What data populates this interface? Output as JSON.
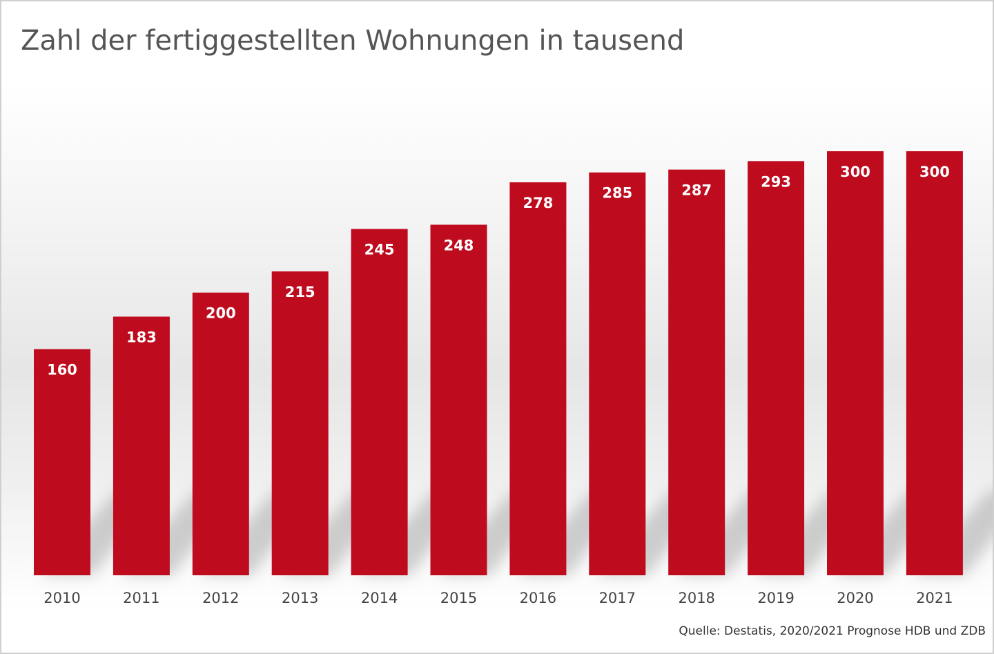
{
  "title": "Zahl der fertiggestellten Wohnungen in tausend",
  "source": "Quelle: Destatis, 2020/2021 Prognose HDB und ZDB",
  "colors": {
    "bar": "#BE0B1E",
    "bar_label": "#ffffff",
    "tick_label": "#444444",
    "title": "#555555"
  },
  "chart_data": {
    "type": "bar",
    "title": "Zahl der fertiggestellten Wohnungen in tausend",
    "categories": [
      "2010",
      "2011",
      "2012",
      "2013",
      "2014",
      "2015",
      "2016",
      "2017",
      "2018",
      "2019",
      "2020",
      "2021"
    ],
    "values": [
      160,
      183,
      200,
      215,
      245,
      248,
      278,
      285,
      287,
      293,
      300,
      300
    ],
    "data_labels": [
      "160",
      "183",
      "200",
      "215",
      "245",
      "248",
      "278",
      "285",
      "287",
      "293",
      "300",
      "300"
    ],
    "xlabel": "",
    "ylabel": "",
    "ylim": [
      0,
      300
    ],
    "grid": false,
    "legend": "none"
  }
}
